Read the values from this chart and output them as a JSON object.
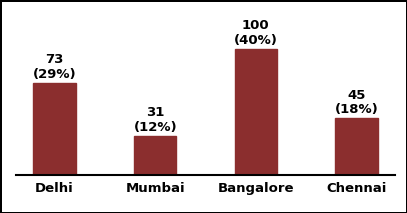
{
  "categories": [
    "Delhi",
    "Mumbai",
    "Bangalore",
    "Chennai"
  ],
  "values": [
    73,
    31,
    100,
    45
  ],
  "percentages": [
    "(29%)",
    "(12%)",
    "(40%)",
    "(18%)"
  ],
  "bar_color": "#8B2E2E",
  "background_color": "#FFFFFF",
  "ylim": [
    0,
    125
  ],
  "label_fontsize": 9.5,
  "tick_fontsize": 9.5,
  "bar_width": 0.42
}
